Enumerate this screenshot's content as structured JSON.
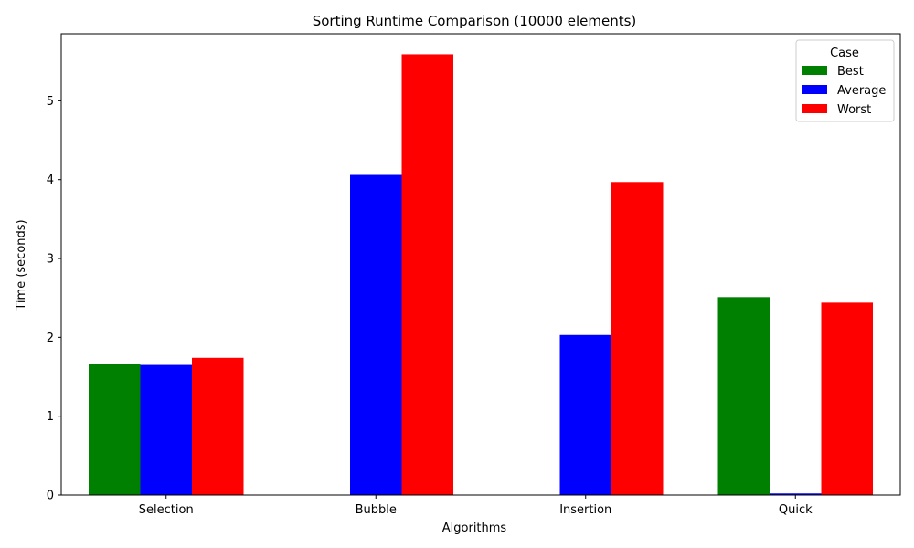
{
  "chart_data": {
    "type": "bar",
    "title": "Sorting Runtime Comparison (10000 elements)",
    "xlabel": "Algorithms",
    "ylabel": "Time (seconds)",
    "categories": [
      "Selection",
      "Bubble",
      "Insertion",
      "Quick"
    ],
    "series": [
      {
        "name": "Best",
        "color": "#008000",
        "values": [
          1.66,
          0,
          0,
          2.51
        ]
      },
      {
        "name": "Average",
        "color": "#0000ff",
        "values": [
          1.65,
          4.06,
          2.03,
          0.02
        ]
      },
      {
        "name": "Worst",
        "color": "#ff0000",
        "values": [
          1.74,
          5.59,
          3.97,
          2.44
        ]
      }
    ],
    "ylim": [
      0,
      5.85
    ],
    "yticks": [
      0,
      1,
      2,
      3,
      4,
      5
    ],
    "grid": false,
    "legend": {
      "title": "Case",
      "position": "upper-right"
    }
  }
}
